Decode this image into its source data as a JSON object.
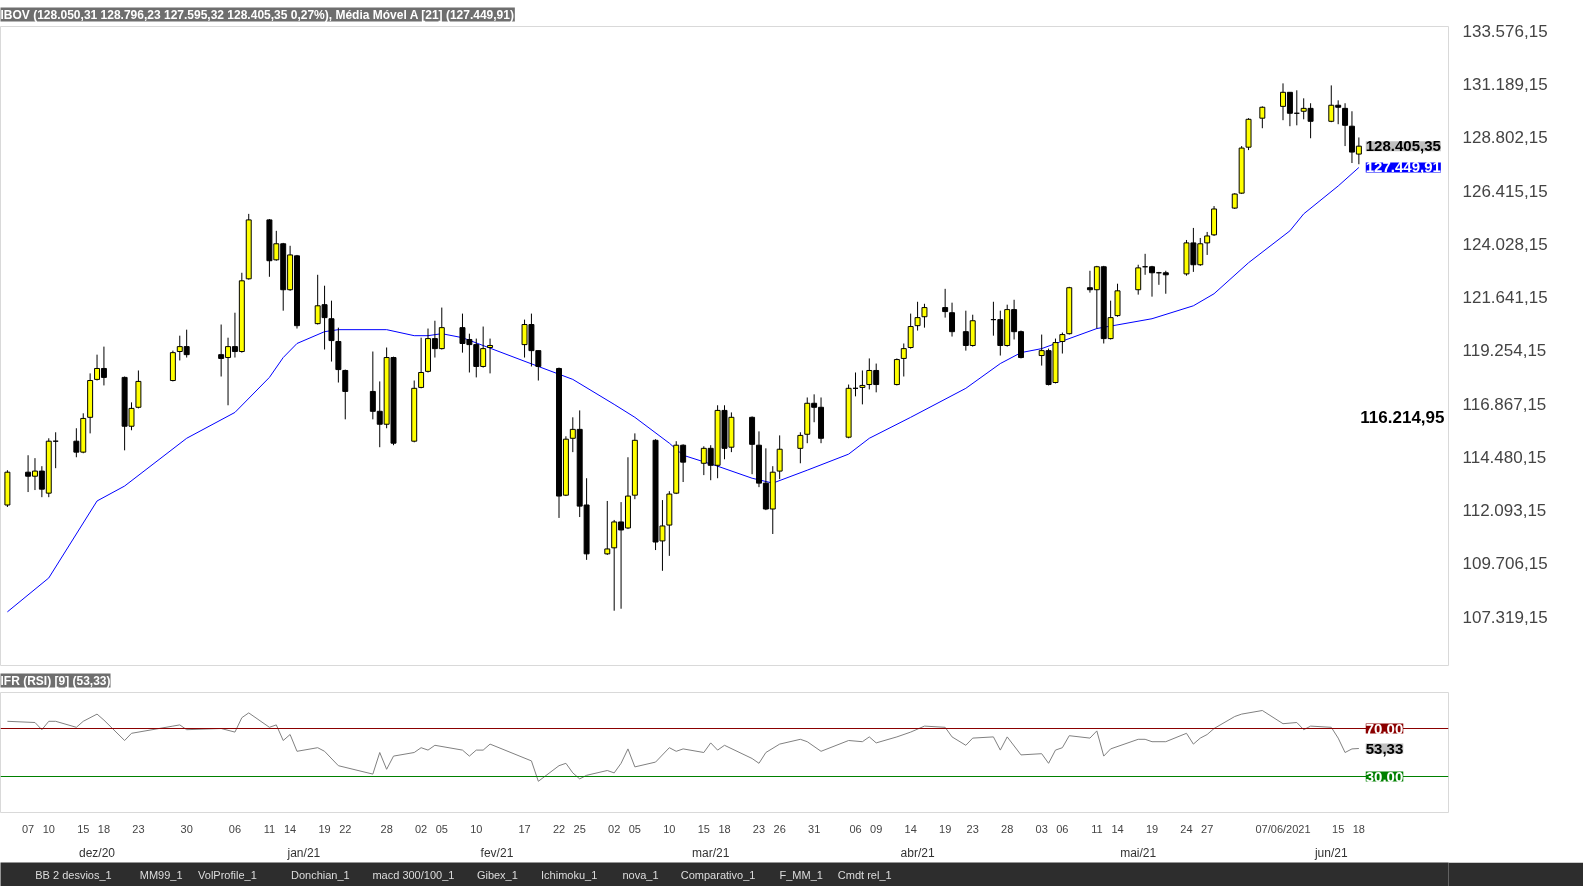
{
  "chart_data": [
    {
      "type": "candlestick",
      "title": "IBOV (128.050,31 128.796,23 127.595,32 128.405,35 0,27%), Média Móvel A [21] (127.449,91)",
      "x": [
        "2020-12-04",
        "2020-12-07",
        "2020-12-08",
        "2020-12-09",
        "2020-12-10",
        "2020-12-11",
        "2020-12-14",
        "2020-12-15",
        "2020-12-16",
        "2020-12-17",
        "2020-12-18",
        "2020-12-21",
        "2020-12-22",
        "2020-12-23",
        "2020-12-28",
        "2020-12-29",
        "2020-12-30",
        "2021-01-04",
        "2021-01-05",
        "2021-01-06",
        "2021-01-07",
        "2021-01-08",
        "2021-01-11",
        "2021-01-12",
        "2021-01-13",
        "2021-01-14",
        "2021-01-15",
        "2021-01-18",
        "2021-01-19",
        "2021-01-20",
        "2021-01-21",
        "2021-01-22",
        "2021-01-26",
        "2021-01-27",
        "2021-01-28",
        "2021-01-29",
        "2021-02-01",
        "2021-02-02",
        "2021-02-03",
        "2021-02-04",
        "2021-02-05",
        "2021-02-08",
        "2021-02-09",
        "2021-02-10",
        "2021-02-11",
        "2021-02-12",
        "2021-02-17",
        "2021-02-18",
        "2021-02-19",
        "2021-02-22",
        "2021-02-23",
        "2021-02-24",
        "2021-02-25",
        "2021-02-26",
        "2021-03-01",
        "2021-03-02",
        "2021-03-03",
        "2021-03-04",
        "2021-03-05",
        "2021-03-08",
        "2021-03-09",
        "2021-03-10",
        "2021-03-11",
        "2021-03-12",
        "2021-03-15",
        "2021-03-16",
        "2021-03-17",
        "2021-03-18",
        "2021-03-19",
        "2021-03-22",
        "2021-03-23",
        "2021-03-24",
        "2021-03-25",
        "2021-03-26",
        "2021-03-29",
        "2021-03-30",
        "2021-03-31",
        "2021-04-01",
        "2021-04-05",
        "2021-04-06",
        "2021-04-07",
        "2021-04-08",
        "2021-04-09",
        "2021-04-12",
        "2021-04-13",
        "2021-04-14",
        "2021-04-15",
        "2021-04-16",
        "2021-04-19",
        "2021-04-20",
        "2021-04-22",
        "2021-04-23",
        "2021-04-26",
        "2021-04-27",
        "2021-04-28",
        "2021-04-29",
        "2021-04-30",
        "2021-05-03",
        "2021-05-04",
        "2021-05-05",
        "2021-05-06",
        "2021-05-07",
        "2021-05-10",
        "2021-05-11",
        "2021-05-12",
        "2021-05-13",
        "2021-05-14",
        "2021-05-17",
        "2021-05-18",
        "2021-05-19",
        "2021-05-20",
        "2021-05-21",
        "2021-05-24",
        "2021-05-25",
        "2021-05-26",
        "2021-05-27",
        "2021-05-28",
        "2021-05-31",
        "2021-06-01",
        "2021-06-02",
        "2021-06-04",
        "2021-06-07",
        "2021-06-08",
        "2021-06-09",
        "2021-06-10",
        "2021-06-11",
        "2021-06-14",
        "2021-06-15",
        "2021-06-16",
        "2021-06-17",
        "2021-06-18"
      ],
      "ohlc": [
        [
          112320,
          113880,
          112230,
          113790
        ],
        [
          113790,
          114550,
          112900,
          113610
        ],
        [
          113610,
          114420,
          112990,
          113840
        ],
        [
          113840,
          114060,
          112670,
          113030
        ],
        [
          112850,
          115310,
          112670,
          115180
        ],
        [
          115180,
          115580,
          113970,
          115180
        ],
        [
          115180,
          115760,
          114460,
          114690
        ],
        [
          114690,
          116430,
          114640,
          116200
        ],
        [
          116250,
          118220,
          115530,
          117900
        ],
        [
          117950,
          119060,
          117900,
          118440
        ],
        [
          118440,
          119420,
          117680,
          118040
        ],
        [
          118040,
          118080,
          114770,
          115850
        ],
        [
          115850,
          116920,
          115670,
          116650
        ],
        [
          116700,
          118350,
          116650,
          117860
        ],
        [
          117900,
          119240,
          117860,
          119150
        ],
        [
          119200,
          119910,
          118800,
          119420
        ],
        [
          119420,
          120180,
          118930,
          119060
        ],
        [
          119060,
          120410,
          118080,
          118890
        ],
        [
          118930,
          119820,
          116790,
          119420
        ],
        [
          119420,
          120940,
          118930,
          119200
        ],
        [
          119200,
          122730,
          119150,
          122370
        ],
        [
          122460,
          125370,
          122420,
          125100
        ],
        [
          125100,
          125140,
          122550,
          123270
        ],
        [
          123310,
          124610,
          123270,
          124030
        ],
        [
          124030,
          124070,
          121030,
          121970
        ],
        [
          121970,
          123940,
          121920,
          123530
        ],
        [
          123490,
          123530,
          120230,
          120360
        ],
        [
          120450,
          122640,
          120410,
          121250
        ],
        [
          121300,
          122150,
          119290,
          120720
        ],
        [
          120670,
          121480,
          118750,
          119690
        ],
        [
          119650,
          120270,
          117810,
          118390
        ],
        [
          118350,
          118390,
          116160,
          117410
        ],
        [
          117410,
          119200,
          116160,
          116520
        ],
        [
          116520,
          117860,
          114910,
          115940
        ],
        [
          115940,
          119380,
          115760,
          118930
        ],
        [
          118930,
          118970,
          115000,
          115090
        ],
        [
          115180,
          117900,
          115130,
          117550
        ],
        [
          117590,
          119820,
          117550,
          118260
        ],
        [
          118310,
          120230,
          118260,
          119780
        ],
        [
          119780,
          120580,
          118930,
          119330
        ],
        [
          119330,
          121170,
          119290,
          120270
        ],
        [
          120270,
          120900,
          119150,
          119560
        ],
        [
          119740,
          120000,
          118260,
          119510
        ],
        [
          119510,
          119780,
          118040,
          118530
        ],
        [
          118530,
          120320,
          118480,
          119330
        ],
        [
          119380,
          119780,
          118220,
          119470
        ],
        [
          119510,
          120630,
          118930,
          120410
        ],
        [
          120410,
          120900,
          118530,
          119240
        ],
        [
          119240,
          119240,
          117900,
          118530
        ],
        [
          118440,
          118480,
          111740,
          112720
        ],
        [
          112760,
          115400,
          112720,
          115270
        ],
        [
          115310,
          116250,
          114690,
          115710
        ],
        [
          115710,
          116560,
          111780,
          112270
        ],
        [
          112320,
          113520,
          109860,
          110130
        ],
        [
          110130,
          112500,
          110080,
          110350
        ],
        [
          110400,
          111650,
          107580,
          111560
        ],
        [
          111560,
          112450,
          107670,
          111200
        ],
        [
          111290,
          114460,
          111240,
          112720
        ],
        [
          112760,
          115530,
          112580,
          115220
        ],
        [
          115220,
          115270,
          110300,
          110660
        ],
        [
          110710,
          112540,
          109370,
          111380
        ],
        [
          111420,
          112940,
          110040,
          112810
        ],
        [
          112850,
          115180,
          112810,
          115000
        ],
        [
          115000,
          115040,
          113350,
          114240
        ],
        [
          114190,
          114950,
          113660,
          114860
        ],
        [
          114860,
          115000,
          113430,
          114100
        ],
        [
          114100,
          116790,
          113520,
          116560
        ],
        [
          116560,
          116790,
          114370,
          114860
        ],
        [
          114910,
          116470,
          114690,
          116250
        ],
        [
          116250,
          116290,
          113700,
          115040
        ],
        [
          115000,
          115620,
          113120,
          113300
        ],
        [
          113300,
          114860,
          112090,
          112140
        ],
        [
          112140,
          114060,
          111020,
          113790
        ],
        [
          113840,
          115440,
          113480,
          114820
        ],
        [
          114860,
          115580,
          114190,
          115440
        ],
        [
          115490,
          117140,
          115090,
          116880
        ],
        [
          116880,
          117280,
          116030,
          116700
        ],
        [
          116700,
          117140,
          115090,
          115310
        ],
        [
          115360,
          117720,
          115310,
          117550
        ],
        [
          117550,
          118260,
          117190,
          117550
        ],
        [
          117590,
          118350,
          116830,
          117680
        ],
        [
          117720,
          118890,
          117500,
          118350
        ],
        [
          118350,
          118660,
          117370,
          117720
        ],
        [
          117720,
          118890,
          117680,
          118840
        ],
        [
          118890,
          119560,
          118080,
          119330
        ],
        [
          119380,
          120900,
          119330,
          120320
        ],
        [
          120360,
          121430,
          120140,
          120720
        ],
        [
          120760,
          121340,
          120270,
          121170
        ],
        [
          121170,
          122010,
          120720,
          120990
        ],
        [
          120940,
          121390,
          119870,
          120090
        ],
        [
          120090,
          121030,
          119240,
          119470
        ],
        [
          119470,
          120850,
          119420,
          120580
        ],
        [
          120630,
          121430,
          119910,
          120630
        ],
        [
          120630,
          121030,
          119020,
          119470
        ],
        [
          119470,
          121300,
          119420,
          121080
        ],
        [
          121080,
          121520,
          119740,
          120090
        ],
        [
          120090,
          120140,
          118890,
          118930
        ],
        [
          119020,
          119960,
          118570,
          119240
        ],
        [
          119240,
          119330,
          117680,
          117720
        ],
        [
          117810,
          119780,
          117770,
          119600
        ],
        [
          119650,
          120050,
          119110,
          119960
        ],
        [
          120000,
          122100,
          119960,
          122060
        ],
        [
          122060,
          122820,
          121840,
          121970
        ],
        [
          121970,
          123040,
          120230,
          123000
        ],
        [
          123000,
          123040,
          119560,
          119780
        ],
        [
          119780,
          121480,
          119740,
          120720
        ],
        [
          120810,
          122240,
          120760,
          121920
        ],
        [
          121970,
          123090,
          121750,
          122950
        ],
        [
          123000,
          123580,
          122640,
          123000
        ],
        [
          123000,
          123040,
          121660,
          122730
        ],
        [
          122730,
          122770,
          122190,
          122730
        ],
        [
          122730,
          122820,
          121790,
          122640
        ],
        [
          122680,
          124200,
          122600,
          124070
        ],
        [
          124070,
          124740,
          122770,
          123090
        ],
        [
          123090,
          124290,
          123040,
          124030
        ],
        [
          124070,
          124560,
          123530,
          124380
        ],
        [
          124430,
          125720,
          124380,
          125590
        ],
        [
          125630,
          126300,
          125590,
          126260
        ],
        [
          126300,
          128410,
          126260,
          128320
        ],
        [
          128360,
          129660,
          128230,
          129610
        ],
        [
          129660,
          130190,
          129210,
          130150
        ],
        [
          130190,
          131220,
          129570,
          130820
        ],
        [
          130820,
          130820,
          129300,
          129880
        ],
        [
          129880,
          130910,
          129340,
          129880
        ],
        [
          129970,
          130550,
          129610,
          130100
        ],
        [
          130100,
          130330,
          128760,
          129520
        ],
        [
          129520,
          131130,
          129480,
          130240
        ],
        [
          130240,
          130460,
          129390,
          130150
        ],
        [
          130100,
          130330,
          128410,
          129340
        ],
        [
          129300,
          129970,
          127650,
          128140
        ],
        [
          128050.31,
          128796.23,
          127595.32,
          128405.35
        ]
      ],
      "colors": [
        "#ffff00",
        "#000000",
        "#ffff00",
        "#000000",
        "#ffff00",
        "#000000",
        "#000000",
        "#ffff00",
        "#ffff00",
        "#ffff00",
        "#000000",
        "#000000",
        "#ffff00",
        "#ffff00",
        "#ffff00",
        "#ffff00",
        "#000000",
        "#000000",
        "#ffff00",
        "#000000",
        "#ffff00",
        "#ffff00",
        "#000000",
        "#ffff00",
        "#000000",
        "#ffff00",
        "#000000",
        "#ffff00",
        "#000000",
        "#000000",
        "#000000",
        "#000000",
        "#000000",
        "#000000",
        "#ffff00",
        "#000000",
        "#ffff00",
        "#ffff00",
        "#ffff00",
        "#000000",
        "#ffff00",
        "#000000",
        "#000000",
        "#000000",
        "#ffff00",
        "#ffff00",
        "#ffff00",
        "#000000",
        "#000000",
        "#000000",
        "#ffff00",
        "#ffff00",
        "#000000",
        "#000000",
        "#ffff00",
        "#ffff00",
        "#000000",
        "#ffff00",
        "#ffff00",
        "#000000",
        "#ffff00",
        "#ffff00",
        "#ffff00",
        "#000000",
        "#ffff00",
        "#000000",
        "#ffff00",
        "#000000",
        "#ffff00",
        "#000000",
        "#000000",
        "#000000",
        "#ffff00",
        "#ffff00",
        "#ffff00",
        "#ffff00",
        "#000000",
        "#000000",
        "#ffff00",
        "#000000",
        "#ffff00",
        "#ffff00",
        "#000000",
        "#ffff00",
        "#ffff00",
        "#ffff00",
        "#ffff00",
        "#ffff00",
        "#000000",
        "#000000",
        "#000000",
        "#ffff00",
        "#000000",
        "#000000",
        "#ffff00",
        "#000000",
        "#000000",
        "#ffff00",
        "#000000",
        "#ffff00",
        "#ffff00",
        "#ffff00",
        "#000000",
        "#ffff00",
        "#000000",
        "#ffff00",
        "#ffff00",
        "#ffff00",
        "#000000",
        "#000000",
        "#000000",
        "#000000",
        "#ffff00",
        "#000000",
        "#ffff00",
        "#ffff00",
        "#ffff00",
        "#ffff00",
        "#ffff00",
        "#ffff00",
        "#ffff00",
        "#ffff00",
        "#000000",
        "#000000",
        "#ffff00",
        "#000000",
        "#ffff00",
        "#000000",
        "#000000",
        "#000000",
        "#ffff00"
      ],
      "series": [
        {
          "type": "line",
          "color": "#0000ff",
          "x": [
            "2020-12-04",
            "2020-12-10",
            "2020-12-17",
            "2020-12-21",
            "2020-12-30",
            "2021-01-06",
            "2021-01-11",
            "2021-01-13",
            "2021-01-15",
            "2021-01-19",
            "2021-01-21",
            "2021-01-28",
            "2021-02-01",
            "2021-02-03",
            "2021-02-05",
            "2021-02-08",
            "2021-02-19",
            "2021-02-24",
            "2021-03-02",
            "2021-03-05",
            "2021-03-10",
            "2021-03-12",
            "2021-03-17",
            "2021-03-22",
            "2021-03-25",
            "2021-03-30",
            "2021-04-05",
            "2021-04-08",
            "2021-04-14",
            "2021-04-22",
            "2021-04-27",
            "2021-04-30",
            "2021-05-03",
            "2021-05-11",
            "2021-05-19",
            "2021-05-25",
            "2021-05-28",
            "2021-06-02",
            "2021-06-08",
            "2021-06-10",
            "2021-06-15",
            "2021-06-18"
          ],
          "values": [
            107530,
            109050,
            112500,
            113170,
            115310,
            116470,
            118040,
            118930,
            119560,
            120090,
            120180,
            120180,
            119910,
            119910,
            120000,
            119820,
            118530,
            117950,
            116830,
            116250,
            115090,
            114550,
            114060,
            113520,
            113300,
            113880,
            114600,
            115310,
            116250,
            117550,
            118660,
            119150,
            119330,
            120230,
            120670,
            121250,
            121790,
            123180,
            124610,
            125370,
            126620,
            127449.91
          ]
        }
      ],
      "ylim": [
        105080,
        133770
      ],
      "xlim": [
        "2020-12-03",
        "2021-07-01"
      ],
      "yticks": [
        {
          "value": 133576.15,
          "label": "133.576,15"
        },
        {
          "value": 131189.15,
          "label": "131.189,15"
        },
        {
          "value": 128802.15,
          "label": "128.802,15"
        },
        {
          "value": 126415.15,
          "label": "126.415,15"
        },
        {
          "value": 124028.15,
          "label": "124.028,15"
        },
        {
          "value": 121641.15,
          "label": "121.641,15"
        },
        {
          "value": 119254.15,
          "label": "119.254,15"
        },
        {
          "value": 116867.15,
          "label": "116.867,15"
        },
        {
          "value": 114480.15,
          "label": "114.480,15"
        },
        {
          "value": 112093.15,
          "label": "112.093,15"
        },
        {
          "value": 109706.15,
          "label": "109.706,15"
        },
        {
          "value": 107319.15,
          "label": "107.319,15"
        }
      ],
      "tick_labels": "y",
      "annotations": [
        {
          "text": "128.405,35",
          "x": "2021-06-18",
          "y": 128405.35
        },
        {
          "text": "127.449,91",
          "x": "2021-06-18",
          "y": 127449.91
        },
        "116.214,95"
      ]
    },
    {
      "type": "line",
      "title": "IFR (RSI) [9] (53,33)",
      "x": [
        "2020-12-04",
        "2020-12-08",
        "2020-12-09",
        "2020-12-10",
        "2020-12-11",
        "2020-12-14",
        "2020-12-15",
        "2020-12-17",
        "2020-12-18",
        "2020-12-21",
        "2020-12-22",
        "2020-12-28",
        "2020-12-29",
        "2020-12-30",
        "2021-01-04",
        "2021-01-06",
        "2021-01-07",
        "2021-01-08",
        "2021-01-11",
        "2021-01-12",
        "2021-01-13",
        "2021-01-14",
        "2021-01-15",
        "2021-01-18",
        "2021-01-19",
        "2021-01-21",
        "2021-01-26",
        "2021-01-27",
        "2021-01-28",
        "2021-01-29",
        "2021-02-01",
        "2021-02-02",
        "2021-02-03",
        "2021-02-04",
        "2021-02-08",
        "2021-02-09",
        "2021-02-10",
        "2021-02-11",
        "2021-02-12",
        "2021-02-18",
        "2021-02-19",
        "2021-02-22",
        "2021-02-23",
        "2021-02-24",
        "2021-02-25",
        "2021-02-26",
        "2021-03-01",
        "2021-03-02",
        "2021-03-03",
        "2021-03-04",
        "2021-03-05",
        "2021-03-08",
        "2021-03-10",
        "2021-03-11",
        "2021-03-12",
        "2021-03-15",
        "2021-03-16",
        "2021-03-17",
        "2021-03-18",
        "2021-03-22",
        "2021-03-23",
        "2021-03-24",
        "2021-03-26",
        "2021-03-29",
        "2021-03-30",
        "2021-04-01",
        "2021-04-05",
        "2021-04-07",
        "2021-04-08",
        "2021-04-09",
        "2021-04-12",
        "2021-04-14",
        "2021-04-16",
        "2021-04-19",
        "2021-04-20",
        "2021-04-22",
        "2021-04-23",
        "2021-04-26",
        "2021-04-27",
        "2021-04-28",
        "2021-04-30",
        "2021-05-03",
        "2021-05-04",
        "2021-05-05",
        "2021-05-06",
        "2021-05-07",
        "2021-05-10",
        "2021-05-11",
        "2021-05-12",
        "2021-05-13",
        "2021-05-17",
        "2021-05-18",
        "2021-05-19",
        "2021-05-21",
        "2021-05-24",
        "2021-05-25",
        "2021-05-26",
        "2021-05-27",
        "2021-05-28",
        "2021-05-31",
        "2021-06-01",
        "2021-06-04",
        "2021-06-07",
        "2021-06-09",
        "2021-06-10",
        "2021-06-11",
        "2021-06-14",
        "2021-06-15",
        "2021-06-16",
        "2021-06-17",
        "2021-06-18"
      ],
      "series": [
        {
          "color": "#808080",
          "values": [
            76,
            75,
            69,
            76,
            76,
            71,
            76,
            82,
            77,
            60,
            66,
            72,
            73,
            69,
            70,
            67,
            79,
            83,
            71,
            73,
            60,
            65,
            51,
            54,
            51,
            39,
            32,
            50,
            36,
            47,
            50,
            54,
            52,
            56,
            52,
            47,
            52,
            52,
            57,
            43,
            26,
            39,
            41,
            33,
            28,
            31,
            35,
            33,
            41,
            53,
            38,
            42,
            54,
            51,
            53,
            50,
            58,
            52,
            56,
            45,
            41,
            50,
            57,
            61,
            59,
            51,
            60,
            59,
            63,
            58,
            63,
            67,
            72,
            71,
            63,
            56,
            62,
            63,
            52,
            63,
            48,
            49,
            41,
            52,
            54,
            64,
            62,
            68,
            47,
            53,
            61,
            61,
            59,
            59,
            66,
            57,
            62,
            65,
            70,
            80,
            82,
            85,
            74,
            75,
            69,
            72,
            71,
            62,
            50,
            53,
            53.33
          ]
        }
      ],
      "ylim": [
        0,
        100
      ],
      "xlim": [
        "2020-12-03",
        "2021-07-01"
      ],
      "tick_labels": "x",
      "xticks": [
        {
          "value": "2020-12-07",
          "label": "07"
        },
        {
          "value": "2020-12-10",
          "label": "10"
        },
        {
          "value": "2020-12-15",
          "label": "15"
        },
        {
          "value": "2020-12-18",
          "label": "18"
        },
        {
          "value": "2020-12-23",
          "label": "23"
        },
        {
          "value": "2020-12-30",
          "label": "30"
        },
        {
          "value": "2021-01-06",
          "label": "06"
        },
        {
          "value": "2021-01-11",
          "label": "11"
        },
        {
          "value": "2021-01-14",
          "label": "14"
        },
        {
          "value": "2021-01-19",
          "label": "19"
        },
        {
          "value": "2021-01-22",
          "label": "22"
        },
        {
          "value": "2021-01-28",
          "label": "28"
        },
        {
          "value": "2021-02-02",
          "label": "02"
        },
        {
          "value": "2021-02-05",
          "label": "05"
        },
        {
          "value": "2021-02-10",
          "label": "10"
        },
        {
          "value": "2021-02-17",
          "label": "17"
        },
        {
          "value": "2021-02-22",
          "label": "22"
        },
        {
          "value": "2021-02-25",
          "label": "25"
        },
        {
          "value": "2021-03-02",
          "label": "02"
        },
        {
          "value": "2021-03-05",
          "label": "05"
        },
        {
          "value": "2021-03-10",
          "label": "10"
        },
        {
          "value": "2021-03-15",
          "label": "15"
        },
        {
          "value": "2021-03-18",
          "label": "18"
        },
        {
          "value": "2021-03-23",
          "label": "23"
        },
        {
          "value": "2021-03-26",
          "label": "26"
        },
        {
          "value": "2021-03-31",
          "label": "31"
        },
        {
          "value": "2021-04-06",
          "label": "06"
        },
        {
          "value": "2021-04-09",
          "label": "09"
        },
        {
          "value": "2021-04-14",
          "label": "14"
        },
        {
          "value": "2021-04-19",
          "label": "19"
        },
        {
          "value": "2021-04-23",
          "label": "23"
        },
        {
          "value": "2021-04-28",
          "label": "28"
        },
        {
          "value": "2021-05-03",
          "label": "03"
        },
        {
          "value": "2021-05-06",
          "label": "06"
        },
        {
          "value": "2021-05-11",
          "label": "11"
        },
        {
          "value": "2021-05-14",
          "label": "14"
        },
        {
          "value": "2021-05-19",
          "label": "19"
        },
        {
          "value": "2021-05-24",
          "label": "24"
        },
        {
          "value": "2021-05-27",
          "label": "27"
        },
        {
          "value": "2021-06-07",
          "label": "07/06/2021"
        },
        {
          "value": "2021-06-15",
          "label": "15"
        },
        {
          "value": "2021-06-18",
          "label": "18"
        }
      ],
      "ref_lines": [
        {
          "axis": "y",
          "value": 70,
          "label": "70,00",
          "color": "#8b0000"
        },
        {
          "axis": "y",
          "value": 30,
          "label": "30,00",
          "color": "#008000"
        }
      ],
      "x2lim": [
        "2020-12-03",
        "2021-07-01"
      ],
      "x2ticks": [
        {
          "value": "2020-12-17",
          "label": "dez/20"
        },
        {
          "value": "2021-01-16",
          "label": "jan/21"
        },
        {
          "value": "2021-02-13",
          "label": "fev/21"
        },
        {
          "value": "2021-03-16",
          "label": "mar/21"
        },
        {
          "value": "2021-04-15",
          "label": "abr/21"
        },
        {
          "value": "2021-05-17",
          "label": "mai/21"
        },
        {
          "value": "2021-06-14",
          "label": "jun/21"
        }
      ],
      "annotations": [
        {
          "text": "53,33",
          "x": "2021-06-18",
          "y": 53.33
        },
        "BB 2 desvios_1",
        "MM99_1",
        "VolProfile_1",
        "Donchian_1",
        "macd 300/100_1",
        "Gibex_1",
        "Ichimoku_1",
        "nova_1",
        "Comparativo_1",
        "F_MM_1",
        "Cmdt rel_1"
      ]
    }
  ]
}
